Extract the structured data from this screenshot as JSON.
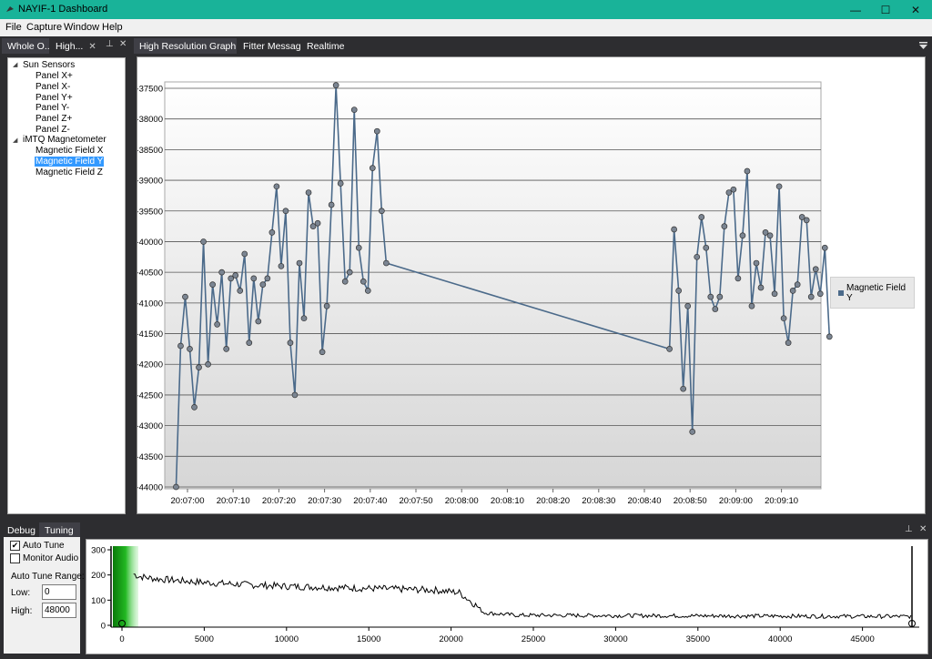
{
  "window": {
    "title": "NAYIF-1 Dashboard",
    "minimize": "—",
    "maximize": "☐",
    "close": "✕"
  },
  "menu": [
    "File",
    "Capture",
    "Window",
    "Help"
  ],
  "left_tabs": [
    {
      "label": "Whole O..."
    },
    {
      "label": "High...",
      "close": "✕"
    }
  ],
  "pin_icon": "⊥",
  "close_glyph": "✕",
  "doc_tabs": [
    {
      "label": "High Resolution Graph",
      "close": "✕"
    },
    {
      "label": "Fitter Messages"
    },
    {
      "label": "Realtime"
    }
  ],
  "tree": {
    "groups": [
      {
        "label": "Sun Sensors",
        "items": [
          "Panel X+",
          "Panel X-",
          "Panel Y+",
          "Panel Y-",
          "Panel Z+",
          "Panel Z-"
        ]
      },
      {
        "label": "iMTQ Magnetometer",
        "items": [
          "Magnetic Field X",
          "Magnetic Field Y",
          "Magnetic Field Z"
        ]
      }
    ],
    "selected": "Magnetic Field Y"
  },
  "legend": {
    "label": "Magnetic Field Y"
  },
  "chart_data": [
    {
      "type": "line",
      "ylim": [
        -44000,
        -37500
      ],
      "yticks": [
        -37500,
        -38000,
        -38500,
        -39000,
        -39500,
        -40000,
        -40500,
        -41000,
        -41500,
        -42000,
        -42500,
        -43000,
        -43500,
        -44000
      ],
      "xticks": [
        "20:07:00",
        "20:07:10",
        "20:07:20",
        "20:07:30",
        "20:07:40",
        "20:07:50",
        "20:08:00",
        "20:08:10",
        "20:08:20",
        "20:08:30",
        "20:08:40",
        "20:08:50",
        "20:09:00",
        "20:09:10"
      ],
      "series": [
        {
          "name": "Magnetic Field Y",
          "color": "#4b6a8a",
          "x_seconds_offset_note_removed": true,
          "points": [
            [
              "20:06:57.5",
              -44000
            ],
            [
              "20:06:58.5",
              -41700
            ],
            [
              "20:06:59.5",
              -40900
            ],
            [
              "20:07:00.5",
              -41750
            ],
            [
              "20:07:01.5",
              -42700
            ],
            [
              "20:07:02.5",
              -42050
            ],
            [
              "20:07:03.5",
              -40000
            ],
            [
              "20:07:04.5",
              -42000
            ],
            [
              "20:07:05.5",
              -40700
            ],
            [
              "20:07:06.5",
              -41350
            ],
            [
              "20:07:07.5",
              -40500
            ],
            [
              "20:07:08.5",
              -41750
            ],
            [
              "20:07:09.5",
              -40600
            ],
            [
              "20:07:10.5",
              -40550
            ],
            [
              "20:07:11.5",
              -40800
            ],
            [
              "20:07:12.5",
              -40200
            ],
            [
              "20:07:13.5",
              -41650
            ],
            [
              "20:07:14.5",
              -40600
            ],
            [
              "20:07:15.5",
              -41300
            ],
            [
              "20:07:16.5",
              -40700
            ],
            [
              "20:07:17.5",
              -40600
            ],
            [
              "20:07:18.5",
              -39850
            ],
            [
              "20:07:19.5",
              -39100
            ],
            [
              "20:07:20.5",
              -40400
            ],
            [
              "20:07:21.5",
              -39500
            ],
            [
              "20:07:22.5",
              -41650
            ],
            [
              "20:07:23.5",
              -42500
            ],
            [
              "20:07:24.5",
              -40350
            ],
            [
              "20:07:25.5",
              -41250
            ],
            [
              "20:07:26.5",
              -39200
            ],
            [
              "20:07:27.5",
              -39750
            ],
            [
              "20:07:28.5",
              -39700
            ],
            [
              "20:07:29.5",
              -41800
            ],
            [
              "20:07:30.5",
              -41050
            ],
            [
              "20:07:31.5",
              -39400
            ],
            [
              "20:07:32.5",
              -37450
            ],
            [
              "20:07:33.5",
              -39050
            ],
            [
              "20:07:34.5",
              -40650
            ],
            [
              "20:07:35.5",
              -40500
            ],
            [
              "20:07:36.5",
              -37850
            ],
            [
              "20:07:37.5",
              -40100
            ],
            [
              "20:07:38.5",
              -40650
            ],
            [
              "20:07:39.5",
              -40800
            ],
            [
              "20:07:40.5",
              -38800
            ],
            [
              "20:07:41.5",
              -38200
            ],
            [
              "20:07:42.5",
              -39500
            ],
            [
              "20:07:43.5",
              -40350
            ],
            [
              "20:08:45.5",
              -41750
            ],
            [
              "20:08:46.5",
              -39800
            ],
            [
              "20:08:47.5",
              -40800
            ],
            [
              "20:08:48.5",
              -42400
            ],
            [
              "20:08:49.5",
              -41050
            ],
            [
              "20:08:50.5",
              -43100
            ],
            [
              "20:08:51.5",
              -40250
            ],
            [
              "20:08:52.5",
              -39600
            ],
            [
              "20:08:53.5",
              -40100
            ],
            [
              "20:08:54.5",
              -40900
            ],
            [
              "20:08:55.5",
              -41100
            ],
            [
              "20:08:56.5",
              -40900
            ],
            [
              "20:08:57.5",
              -39750
            ],
            [
              "20:08:58.5",
              -39200
            ],
            [
              "20:08:59.5",
              -39150
            ],
            [
              "20:09:00.5",
              -40600
            ],
            [
              "20:09:01.5",
              -39900
            ],
            [
              "20:09:02.5",
              -38850
            ],
            [
              "20:09:03.5",
              -41050
            ],
            [
              "20:09:04.5",
              -40350
            ],
            [
              "20:09:05.5",
              -40750
            ],
            [
              "20:09:06.5",
              -39850
            ],
            [
              "20:09:07.5",
              -39900
            ],
            [
              "20:09:08.5",
              -40850
            ],
            [
              "20:09:09.5",
              -39100
            ],
            [
              "20:09:10.5",
              -41250
            ],
            [
              "20:09:11.5",
              -41650
            ],
            [
              "20:09:12.5",
              -40800
            ],
            [
              "20:09:13.5",
              -40700
            ],
            [
              "20:09:14.5",
              -39600
            ],
            [
              "20:09:15.5",
              -39650
            ],
            [
              "20:09:16.5",
              -40900
            ],
            [
              "20:09:17.5",
              -40450
            ],
            [
              "20:09:18.5",
              -40850
            ],
            [
              "20:09:19.5",
              -40100
            ],
            [
              "20:09:20.5",
              -41550
            ]
          ]
        }
      ]
    },
    {
      "type": "line",
      "ylim": [
        0,
        300
      ],
      "yticks": [
        300,
        200,
        100,
        0
      ],
      "xlim": [
        -500,
        48500
      ],
      "xticks": [
        0,
        5000,
        10000,
        15000,
        20000,
        25000,
        30000,
        35000,
        40000,
        45000
      ],
      "series": [
        {
          "color": "#000000",
          "profile": [
            [
              500,
              210
            ],
            [
              1000,
              195
            ],
            [
              2000,
              185
            ],
            [
              5000,
              170
            ],
            [
              8000,
              160
            ],
            [
              10000,
              155
            ],
            [
              13000,
              150
            ],
            [
              16000,
              145
            ],
            [
              19000,
              140
            ],
            [
              20500,
              130
            ],
            [
              21500,
              80
            ],
            [
              22000,
              50
            ],
            [
              24000,
              40
            ],
            [
              48000,
              35
            ]
          ]
        }
      ],
      "markers": {
        "low": 0,
        "high": 48000
      }
    }
  ],
  "bottom_tabs": [
    {
      "label": "Debug"
    },
    {
      "label": "Tuning"
    }
  ],
  "tuning": {
    "auto_tune_label": "Auto Tune",
    "auto_tune_checked": true,
    "monitor_audio_label": "Monitor Audio",
    "monitor_audio_checked": false,
    "range_label": "Auto Tune Range:",
    "low_label": "Low:",
    "low_value": "0",
    "high_label": "High:",
    "high_value": "48000"
  }
}
